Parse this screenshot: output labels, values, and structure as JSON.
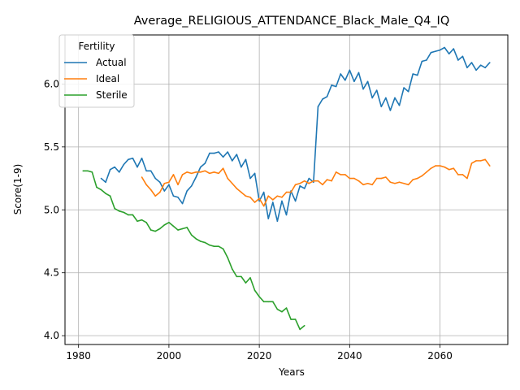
{
  "chart_data": {
    "type": "line",
    "title": "Average_RELIGIOUS_ATTENDANCE_Black_Male_Q4_IQ",
    "xlabel": "Years",
    "ylabel": "Score(1-9)",
    "xlim": [
      1977,
      2075
    ],
    "ylim": [
      3.93,
      6.39
    ],
    "x_ticks": [
      1980,
      2000,
      2020,
      2040,
      2060
    ],
    "y_ticks": [
      4.0,
      4.5,
      5.0,
      5.5,
      6.0
    ],
    "x_tick_labels": [
      "1980",
      "2000",
      "2020",
      "2040",
      "2060"
    ],
    "y_tick_labels": [
      "4.0",
      "4.5",
      "5.0",
      "5.5",
      "6.0"
    ],
    "grid": true,
    "legend": {
      "title": "Fertility",
      "placement": "top-left"
    },
    "series": [
      {
        "name": "Actual",
        "color": "#1f77b4",
        "x_start": 1985,
        "values": [
          5.25,
          5.22,
          5.32,
          5.34,
          5.3,
          5.36,
          5.4,
          5.41,
          5.34,
          5.41,
          5.31,
          5.31,
          5.25,
          5.22,
          5.15,
          5.2,
          5.11,
          5.1,
          5.05,
          5.15,
          5.19,
          5.26,
          5.34,
          5.37,
          5.45,
          5.45,
          5.46,
          5.42,
          5.46,
          5.39,
          5.44,
          5.34,
          5.4,
          5.25,
          5.29,
          5.07,
          5.14,
          4.93,
          5.06,
          4.91,
          5.07,
          4.96,
          5.15,
          5.07,
          5.19,
          5.17,
          5.25,
          5.22,
          5.82,
          5.88,
          5.9,
          5.99,
          5.98,
          6.08,
          6.03,
          6.11,
          6.02,
          6.09,
          5.96,
          6.02,
          5.89,
          5.95,
          5.82,
          5.89,
          5.79,
          5.89,
          5.83,
          5.97,
          5.94,
          6.08,
          6.07,
          6.18,
          6.19,
          6.25,
          6.26,
          6.27,
          6.29,
          6.24,
          6.28,
          6.19,
          6.22,
          6.13,
          6.17,
          6.11,
          6.15,
          6.13,
          6.17
        ]
      },
      {
        "name": "Ideal",
        "color": "#ff7f0e",
        "x_start": 1994,
        "values": [
          5.26,
          5.2,
          5.16,
          5.11,
          5.14,
          5.21,
          5.22,
          5.28,
          5.2,
          5.28,
          5.3,
          5.29,
          5.3,
          5.3,
          5.31,
          5.29,
          5.3,
          5.29,
          5.33,
          5.25,
          5.21,
          5.17,
          5.14,
          5.11,
          5.1,
          5.06,
          5.09,
          5.03,
          5.11,
          5.08,
          5.11,
          5.1,
          5.14,
          5.14,
          5.2,
          5.21,
          5.23,
          5.21,
          5.23,
          5.23,
          5.2,
          5.24,
          5.23,
          5.3,
          5.28,
          5.28,
          5.25,
          5.25,
          5.23,
          5.2,
          5.21,
          5.2,
          5.25,
          5.25,
          5.26,
          5.22,
          5.21,
          5.22,
          5.21,
          5.2,
          5.24,
          5.25,
          5.27,
          5.3,
          5.33,
          5.35,
          5.35,
          5.34,
          5.32,
          5.33,
          5.28,
          5.28,
          5.25,
          5.37,
          5.39,
          5.39,
          5.4,
          5.35
        ]
      },
      {
        "name": "Sterile",
        "color": "#2ca02c",
        "x_start": 1981,
        "values": [
          5.31,
          5.31,
          5.3,
          5.18,
          5.16,
          5.13,
          5.11,
          5.01,
          4.99,
          4.98,
          4.96,
          4.96,
          4.91,
          4.92,
          4.9,
          4.84,
          4.83,
          4.85,
          4.88,
          4.9,
          4.87,
          4.84,
          4.85,
          4.86,
          4.8,
          4.77,
          4.75,
          4.74,
          4.72,
          4.71,
          4.71,
          4.69,
          4.62,
          4.53,
          4.47,
          4.47,
          4.42,
          4.46,
          4.36,
          4.31,
          4.27,
          4.27,
          4.27,
          4.21,
          4.19,
          4.22,
          4.13,
          4.13,
          4.05,
          4.08
        ]
      }
    ]
  }
}
